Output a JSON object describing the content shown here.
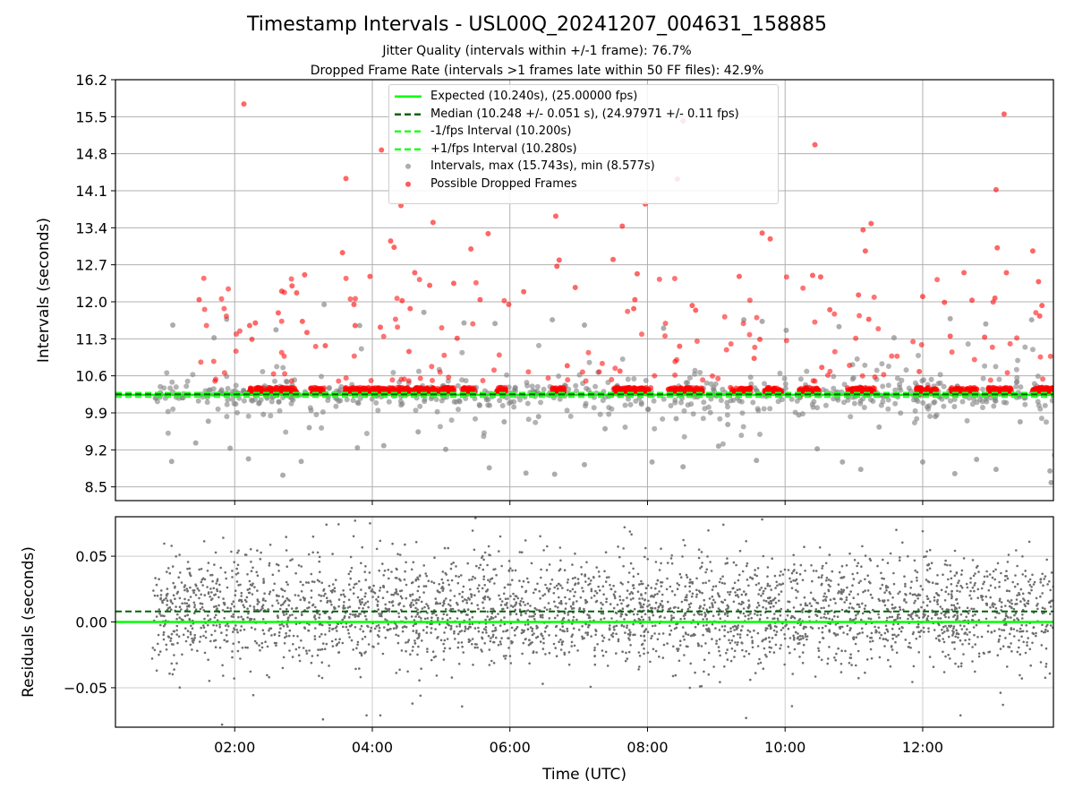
{
  "title": "Timestamp Intervals - USL00Q_20241207_004631_158885",
  "subtitle1": "Jitter Quality (intervals within +/-1 frame): 76.7%",
  "subtitle2": "Dropped Frame Rate (intervals >1 frames late within 50 FF files): 42.9%",
  "colors": {
    "expected": "#00ff00",
    "median": "#006400",
    "interval_bounds": "#22ff22",
    "intervals": "#808080",
    "dropped": "#ff0000",
    "grid": "#b0b0b0",
    "residuals": "#6e6e6e"
  },
  "legend": [
    {
      "label": "Expected (10.240s), (25.00000 fps)",
      "style": "solid-line",
      "color": "#00ff00"
    },
    {
      "label": "Median (10.248 +/- 0.051 s), (24.97971 +/- 0.11 fps)",
      "style": "dashed-line",
      "color": "#006400"
    },
    {
      "label": "-1/fps Interval (10.200s)",
      "style": "dashed-line",
      "color": "#22ff22"
    },
    {
      "label": "+1/fps Interval (10.280s)",
      "style": "dashed-line",
      "color": "#22ff22"
    },
    {
      "label": "Intervals, max (15.743s), min (8.577s)",
      "style": "marker",
      "color": "#808080"
    },
    {
      "label": "Possible Dropped Frames",
      "style": "marker",
      "color": "#ff0000"
    }
  ],
  "chart_data": [
    {
      "type": "scatter",
      "panel": "top",
      "title": "Timestamp Intervals - USL00Q_20241207_004631_158885",
      "xlabel": "",
      "ylabel": "Intervals (seconds)",
      "xlim": [
        "00:16",
        "13:54"
      ],
      "ylim": [
        8.24,
        16.2
      ],
      "yticks": [
        "16.2",
        "15.5",
        "14.8",
        "14.1",
        "13.4",
        "12.7",
        "12.0",
        "11.3",
        "10.6",
        "9.9",
        "9.2",
        "8.5"
      ],
      "xticks": [
        "02:00",
        "04:00",
        "06:00",
        "08:00",
        "10:00",
        "12:00"
      ],
      "grid": true,
      "legend_position": "top-center",
      "reference_lines": {
        "expected": 10.24,
        "median": 10.248,
        "minus_1_fps": 10.2,
        "plus_1_fps": 10.28
      },
      "summary": {
        "max_interval": 15.743,
        "min_interval": 8.577,
        "jitter_quality_pct": 76.7,
        "dropped_frame_rate_pct": 42.9
      },
      "series": [
        {
          "name": "Possible Dropped Frames",
          "color": "#ff0000",
          "points": [
            [
              "02:08",
              15.74
            ],
            [
              "03:37",
              14.33
            ],
            [
              "04:08",
              14.87
            ],
            [
              "04:25",
              13.82
            ],
            [
              "04:16",
              13.15
            ],
            [
              "04:19",
              13.03
            ],
            [
              "04:53",
              13.5
            ],
            [
              "05:26",
              13.0
            ],
            [
              "05:41",
              13.29
            ],
            [
              "05:11",
              12.35
            ],
            [
              "04:37",
              12.55
            ],
            [
              "04:50",
              12.31
            ],
            [
              "04:26",
              12.02
            ],
            [
              "04:33",
              11.87
            ],
            [
              "03:58",
              12.48
            ],
            [
              "03:34",
              12.93
            ],
            [
              "03:01",
              12.51
            ],
            [
              "02:41",
              12.2
            ],
            [
              "02:50",
              12.3
            ],
            [
              "02:54",
              12.17
            ],
            [
              "01:29",
              12.04
            ],
            [
              "02:13",
              11.55
            ],
            [
              "02:18",
              11.6
            ],
            [
              "02:15",
              11.29
            ],
            [
              "02:59",
              11.63
            ],
            [
              "03:03",
              11.42
            ],
            [
              "02:38",
              11.79
            ],
            [
              "03:19",
              11.17
            ],
            [
              "03:44",
              11.95
            ],
            [
              "03:45",
              11.55
            ],
            [
              "04:07",
              11.52
            ],
            [
              "05:34",
              12.04
            ],
            [
              "05:59",
              11.95
            ],
            [
              "06:12",
              12.19
            ],
            [
              "06:41",
              12.67
            ],
            [
              "06:43",
              12.79
            ],
            [
              "06:40",
              13.62
            ],
            [
              "06:57",
              12.27
            ],
            [
              "07:30",
              12.8
            ],
            [
              "07:38",
              13.43
            ],
            [
              "07:51",
              12.53
            ],
            [
              "07:49",
              12.04
            ],
            [
              "07:48",
              11.87
            ],
            [
              "07:58",
              13.85
            ],
            [
              "08:31",
              15.42
            ],
            [
              "08:26",
              14.32
            ],
            [
              "08:39",
              11.93
            ],
            [
              "08:42",
              11.84
            ],
            [
              "08:28",
              11.16
            ],
            [
              "09:40",
              13.3
            ],
            [
              "09:47",
              13.19
            ],
            [
              "09:38",
              11.29
            ],
            [
              "09:20",
              12.48
            ],
            [
              "10:24",
              12.5
            ],
            [
              "10:31",
              12.47
            ],
            [
              "10:39",
              11.85
            ],
            [
              "10:26",
              14.97
            ],
            [
              "11:04",
              12.13
            ],
            [
              "11:08",
              13.36
            ],
            [
              "11:15",
              13.48
            ],
            [
              "11:13",
              11.67
            ],
            [
              "11:10",
              12.96
            ],
            [
              "12:00",
              12.1
            ],
            [
              "12:19",
              11.99
            ],
            [
              "12:24",
              11.35
            ],
            [
              "12:36",
              12.55
            ],
            [
              "12:43",
              12.03
            ],
            [
              "13:11",
              15.55
            ],
            [
              "13:04",
              14.12
            ],
            [
              "13:05",
              13.02
            ],
            [
              "13:13",
              12.55
            ],
            [
              "13:36",
              12.96
            ],
            [
              "13:41",
              12.38
            ],
            [
              "13:44",
              11.93
            ],
            [
              "13:42",
              11.73
            ],
            [
              "13:03",
              12.07
            ],
            [
              "12:54",
              11.33
            ],
            [
              "04:32",
              11.06
            ],
            [
              "05:14",
              11.31
            ],
            [
              "06:50",
              10.79
            ],
            [
              "07:36",
              10.69
            ],
            [
              "09:33",
              10.93
            ],
            [
              "10:32",
              10.76
            ],
            [
              "11:57",
              10.68
            ]
          ]
        },
        {
          "name": "Intervals, max (15.743s), min (8.577s)",
          "color": "#808080",
          "points": [
            [
              "01:06",
              11.56
            ],
            [
              "01:42",
              11.32
            ],
            [
              "01:53",
              11.67
            ],
            [
              "02:36",
              11.47
            ],
            [
              "03:18",
              11.95
            ],
            [
              "03:49",
              11.55
            ],
            [
              "04:45",
              11.8
            ],
            [
              "05:20",
              11.6
            ],
            [
              "05:47",
              11.59
            ],
            [
              "06:37",
              11.66
            ],
            [
              "07:05",
              11.56
            ],
            [
              "08:14",
              11.5
            ],
            [
              "09:24",
              11.66
            ],
            [
              "09:40",
              11.63
            ],
            [
              "10:01",
              11.46
            ],
            [
              "10:47",
              11.53
            ],
            [
              "11:35",
              11.32
            ],
            [
              "12:24",
              11.68
            ],
            [
              "12:55",
              11.58
            ],
            [
              "13:35",
              11.66
            ],
            [
              "01:05",
              8.98
            ],
            [
              "01:26",
              9.33
            ],
            [
              "01:56",
              9.23
            ],
            [
              "02:12",
              9.03
            ],
            [
              "02:42",
              8.72
            ],
            [
              "02:58",
              8.98
            ],
            [
              "03:47",
              9.24
            ],
            [
              "04:10",
              9.28
            ],
            [
              "05:04",
              9.21
            ],
            [
              "05:42",
              8.86
            ],
            [
              "06:14",
              8.76
            ],
            [
              "06:39",
              8.74
            ],
            [
              "07:05",
              8.92
            ],
            [
              "08:04",
              8.97
            ],
            [
              "08:31",
              8.88
            ],
            [
              "09:02",
              9.27
            ],
            [
              "09:35",
              9.0
            ],
            [
              "10:28",
              9.22
            ],
            [
              "10:50",
              8.97
            ],
            [
              "11:06",
              8.83
            ],
            [
              "12:00",
              8.97
            ],
            [
              "12:28",
              8.75
            ],
            [
              "12:47",
              9.02
            ],
            [
              "13:04",
              8.83
            ],
            [
              "13:52",
              8.58
            ],
            [
              "13:51",
              8.8
            ],
            [
              "13:55",
              9.1
            ],
            [
              "01:37",
              9.74
            ],
            [
              "02:25",
              9.87
            ],
            [
              "03:05",
              9.62
            ],
            [
              "04:40",
              9.54
            ],
            [
              "05:55",
              9.73
            ],
            [
              "06:25",
              9.83
            ],
            [
              "07:23",
              9.6
            ],
            [
              "08:25",
              9.79
            ],
            [
              "09:10",
              9.68
            ],
            [
              "10:12",
              9.86
            ],
            [
              "11:22",
              9.63
            ],
            [
              "12:11",
              9.83
            ],
            [
              "13:25",
              9.73
            ]
          ]
        }
      ]
    },
    {
      "type": "scatter",
      "panel": "bottom",
      "xlabel": "Time (UTC)",
      "ylabel": "Residuals (seconds)",
      "xlim": [
        "00:16",
        "13:54"
      ],
      "ylim": [
        -0.08,
        0.08
      ],
      "yticks": [
        "0.05",
        "0.00",
        "−0.05"
      ],
      "xticks": [
        "02:00",
        "04:00",
        "06:00",
        "08:00",
        "10:00",
        "12:00"
      ],
      "grid": true,
      "reference_lines": {
        "expected": 0.0,
        "median": 0.008
      },
      "series": [
        {
          "name": "",
          "color": "#6e6e6e",
          "points": [
            [
              "01:49",
              -0.078
            ],
            [
              "03:17",
              -0.074
            ],
            [
              "03:55",
              -0.071
            ],
            [
              "04:07",
              -0.071
            ],
            [
              "09:26",
              -0.073
            ],
            [
              "12:33",
              -0.071
            ],
            [
              "13:10",
              -0.063
            ],
            [
              "04:35",
              -0.062
            ],
            [
              "04:42",
              -0.056
            ],
            [
              "10:06",
              -0.064
            ],
            [
              "03:58",
              0.075
            ],
            [
              "03:45",
              0.077
            ],
            [
              "05:30",
              0.079
            ],
            [
              "09:40",
              0.078
            ],
            [
              "12:00",
              0.069
            ],
            [
              "01:50",
              0.064
            ],
            [
              "03:20",
              0.074
            ],
            [
              "07:40",
              0.072
            ],
            [
              "11:37",
              0.07
            ],
            [
              "13:33",
              0.061
            ]
          ]
        }
      ]
    }
  ]
}
